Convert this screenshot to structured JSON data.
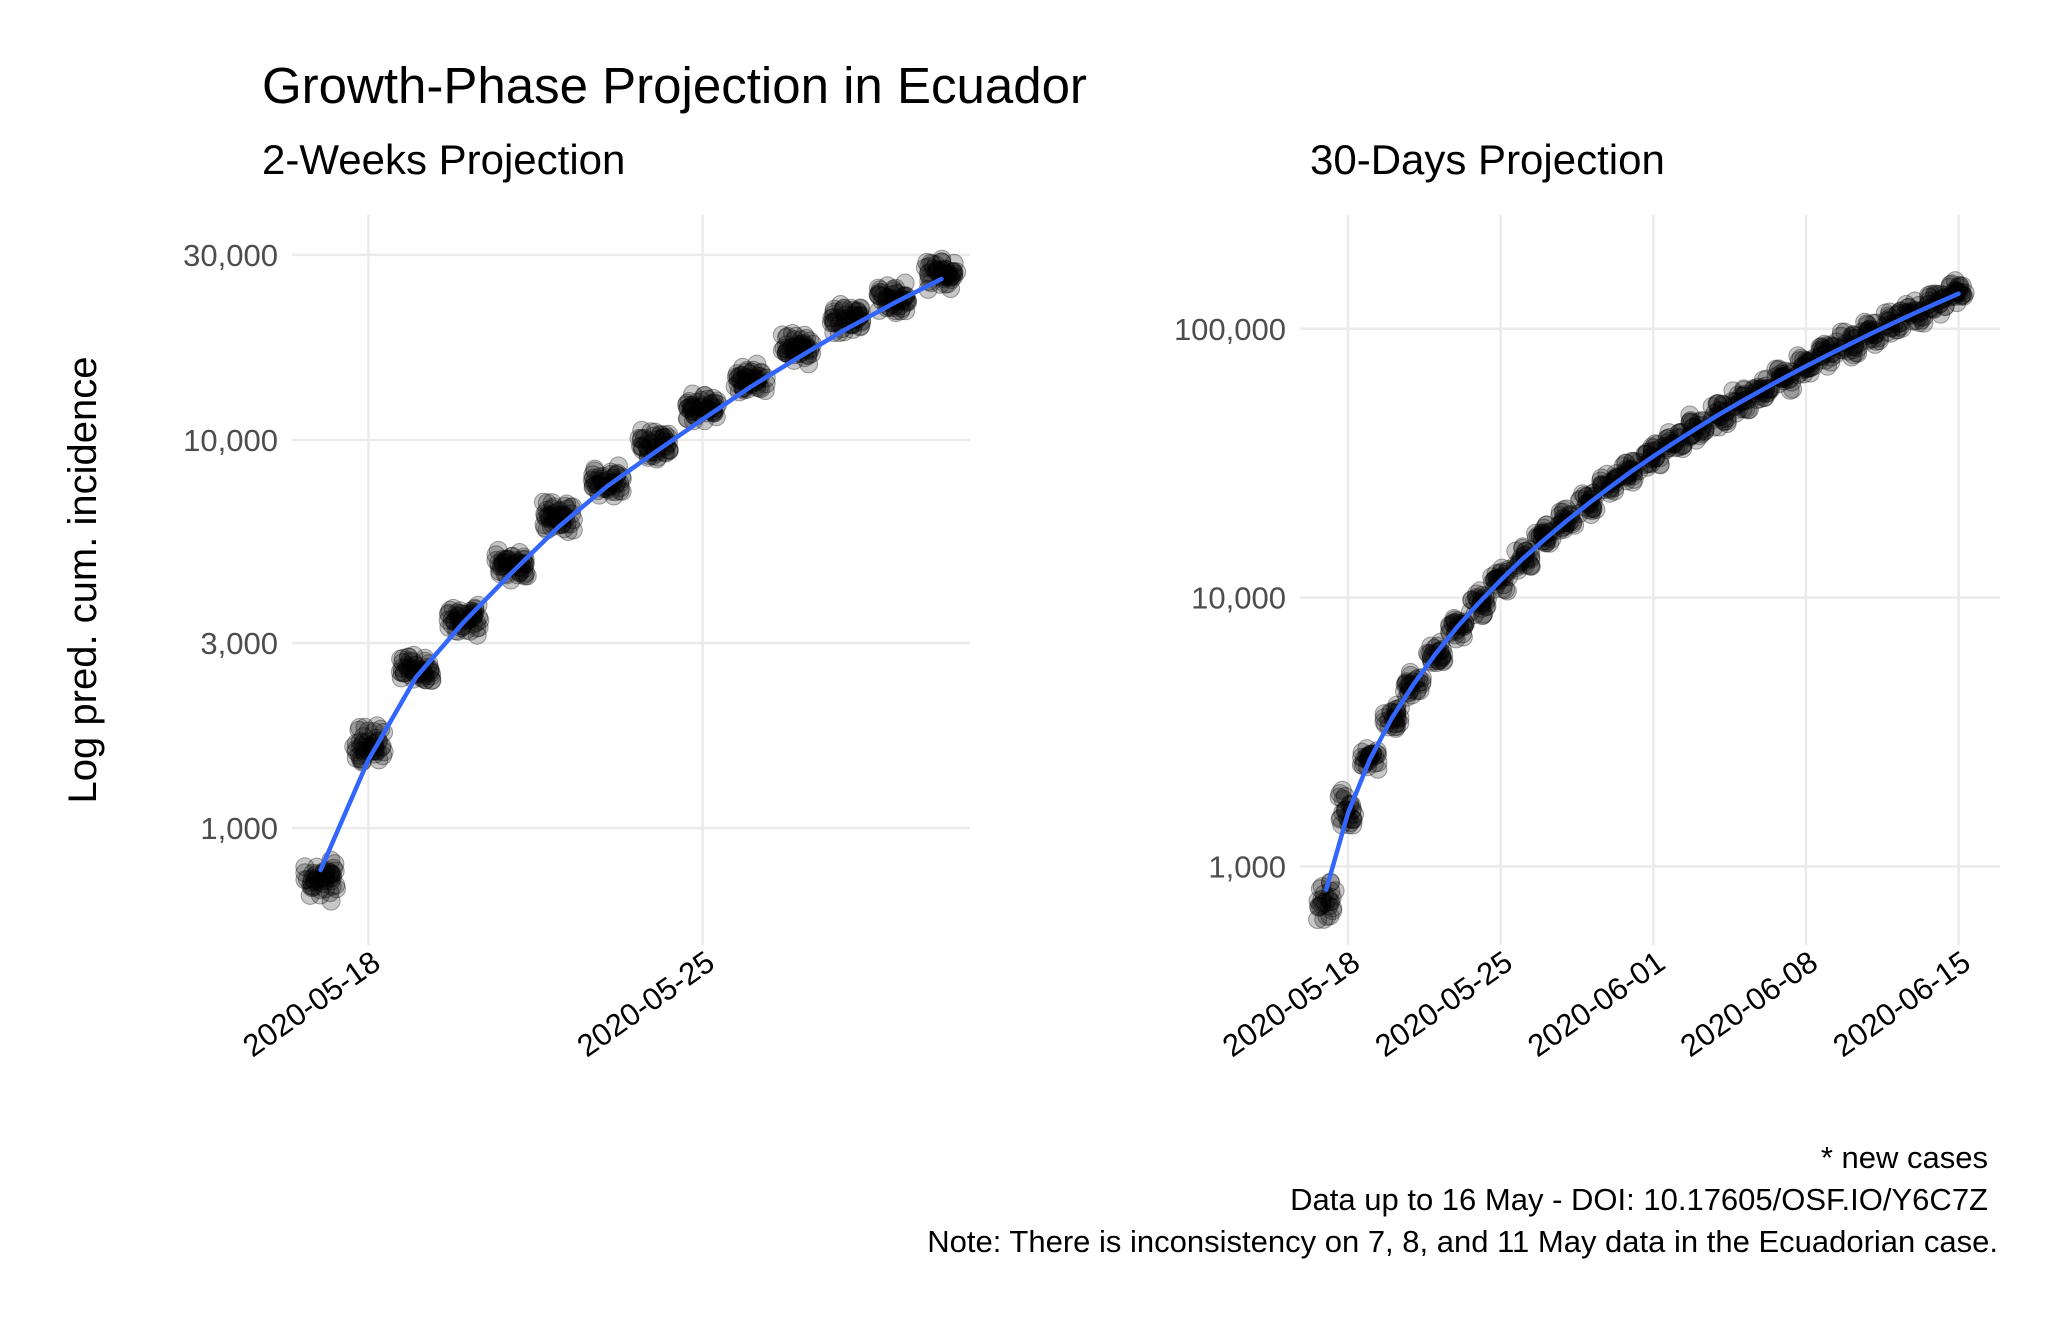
{
  "title": "Growth-Phase Projection in Ecuador",
  "caption": {
    "line1": "* new cases",
    "line2": "Data up to 16 May - DOI: 10.17605/OSF.IO/Y6C7Z",
    "line3": "Note: There is inconsistency on 7, 8, and 11 May data in the Ecuadorian case."
  },
  "colors": {
    "fit": "#3366ff",
    "points": "#000000",
    "grid": "#ebebeb"
  },
  "chart_data": [
    {
      "type": "scatter",
      "subtitle": "2-Weeks Projection",
      "ylabel": "Log pred. cum. incidence",
      "xlabel": "",
      "yscale": "log10",
      "ylim": [
        500,
        38000
      ],
      "x_start_date": "2020-05-17",
      "xlim": [
        -0.6,
        13.6
      ],
      "xticks": [
        {
          "day": 1,
          "label": "2020-05-18"
        },
        {
          "day": 8,
          "label": "2020-05-25"
        }
      ],
      "yticks": [
        {
          "value": 1000,
          "label": "1,000"
        },
        {
          "value": 3000,
          "label": "3,000"
        },
        {
          "value": 10000,
          "label": "10,000"
        },
        {
          "value": 30000,
          "label": "30,000"
        }
      ],
      "series": [
        {
          "name": "simulated projections",
          "kind": "points",
          "x": [
            0,
            1,
            2,
            3,
            4,
            5,
            6,
            7,
            8,
            9,
            10,
            11,
            12,
            13
          ],
          "values": [
            740,
            1630,
            2550,
            3450,
            4800,
            6300,
            7800,
            9700,
            12000,
            14400,
            17200,
            20500,
            23200,
            26600
          ]
        },
        {
          "name": "smoothed fit",
          "kind": "line",
          "x": [
            0,
            1,
            2,
            3,
            4,
            5,
            6,
            7,
            8,
            9,
            10,
            11,
            12,
            13
          ],
          "values": [
            780,
            1500,
            2450,
            3400,
            4550,
            6000,
            7600,
            9300,
            11300,
            13700,
            16300,
            19300,
            22500,
            26000
          ]
        }
      ]
    },
    {
      "type": "scatter",
      "subtitle": "30-Days Projection",
      "ylabel": "",
      "xlabel": "",
      "yscale": "log10",
      "ylim": [
        510,
        265000
      ],
      "x_start_date": "2020-05-17",
      "xlim": [
        -1.2,
        30.9
      ],
      "xticks": [
        {
          "day": 1,
          "label": "2020-05-18"
        },
        {
          "day": 8,
          "label": "2020-05-25"
        },
        {
          "day": 15,
          "label": "2020-06-01"
        },
        {
          "day": 22,
          "label": "2020-06-08"
        },
        {
          "day": 29,
          "label": "2020-06-15"
        }
      ],
      "yticks": [
        {
          "value": 1000,
          "label": "1,000"
        },
        {
          "value": 10000,
          "label": "10,000"
        },
        {
          "value": 100000,
          "label": "100,000"
        }
      ],
      "series": [
        {
          "name": "simulated projections",
          "kind": "points",
          "x": [
            0,
            1,
            2,
            3,
            4,
            5,
            6,
            7,
            8,
            9,
            10,
            11,
            12,
            13,
            14,
            15,
            16,
            17,
            18,
            19,
            20,
            21,
            22,
            23,
            24,
            25,
            26,
            27,
            28,
            29
          ],
          "values": [
            740,
            1630,
            2550,
            3550,
            4800,
            6200,
            7800,
            9600,
            11800,
            14100,
            16700,
            19500,
            22600,
            26100,
            29800,
            33900,
            38200,
            42900,
            48000,
            53500,
            59400,
            65800,
            72600,
            80000,
            87900,
            96500,
            105500,
            115000,
            125500,
            136500
          ]
        },
        {
          "name": "smoothed fit",
          "kind": "line",
          "x": [
            0,
            1,
            2,
            3,
            4,
            5,
            6,
            7,
            8,
            9,
            10,
            11,
            12,
            13,
            14,
            15,
            16,
            17,
            18,
            19,
            20,
            21,
            22,
            23,
            24,
            25,
            26,
            27,
            28,
            29
          ],
          "values": [
            820,
            1580,
            2500,
            3550,
            4750,
            6150,
            7750,
            9550,
            11600,
            13900,
            16400,
            19200,
            22300,
            25700,
            29500,
            33500,
            37900,
            42700,
            47900,
            53400,
            59300,
            65700,
            72500,
            79800,
            87600,
            96000,
            105000,
            114500,
            124500,
            135000
          ]
        }
      ]
    }
  ]
}
